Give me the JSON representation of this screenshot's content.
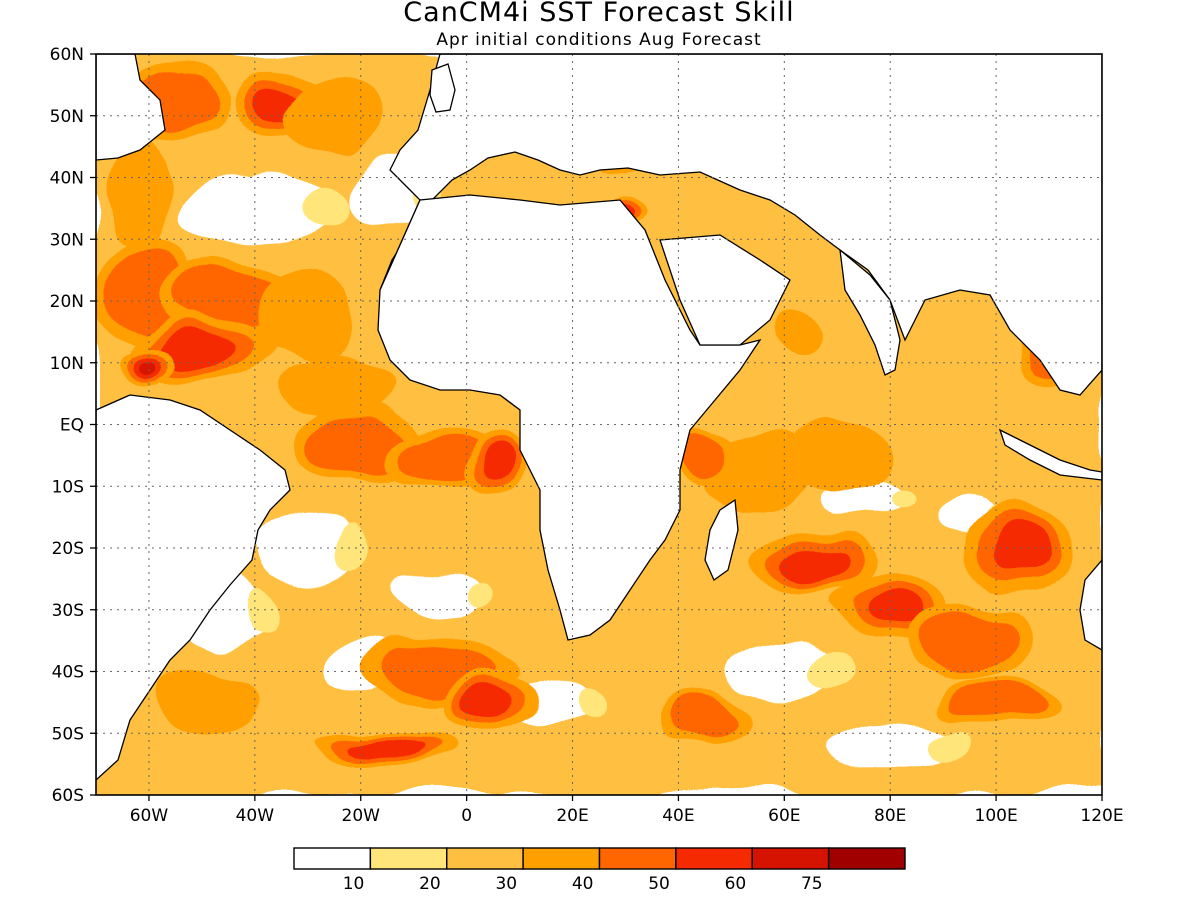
{
  "map": {
    "title": "CanCM4i SST Forecast Skill",
    "subtitle": "Apr initial conditions  Aug Forecast",
    "lat_labels": [
      "60N",
      "50N",
      "40N",
      "30N",
      "20N",
      "10N",
      "EQ",
      "10S",
      "20S",
      "30S",
      "40S",
      "50S",
      "60S"
    ],
    "lat_values": [
      60,
      50,
      40,
      30,
      20,
      10,
      0,
      -10,
      -20,
      -30,
      -40,
      -50,
      -60
    ],
    "lon_labels": [
      "60W",
      "40W",
      "20W",
      "0",
      "20E",
      "40E",
      "60E",
      "80E",
      "100E",
      "120E"
    ],
    "lon_values": [
      -60,
      -40,
      -20,
      0,
      20,
      40,
      60,
      80,
      100,
      120
    ],
    "lon_range": [
      -70,
      120
    ],
    "lat_range": [
      -60,
      60
    ],
    "grid": true,
    "palette": [
      "#ffffff",
      "#ffe57a",
      "#ffbf40",
      "#ff9f00",
      "#ff6600",
      "#f52a00",
      "#d61200",
      "#a00000"
    ],
    "colorbar": {
      "colors": [
        "#ffffff",
        "#ffe57a",
        "#ffbf40",
        "#ff9f00",
        "#ff6600",
        "#f52a00",
        "#d61200",
        "#a00000"
      ],
      "labels": [
        "10",
        "20",
        "30",
        "40",
        "50",
        "60",
        "75"
      ]
    },
    "skill_regions": [
      {
        "lon": -55,
        "lat": 52,
        "rx": 10,
        "ry": 6,
        "level": 4
      },
      {
        "lon": -35,
        "lat": 52,
        "rx": 9,
        "ry": 6,
        "level": 5
      },
      {
        "lon": -25,
        "lat": 50,
        "rx": 8,
        "ry": 6,
        "level": 3
      },
      {
        "lon": -62,
        "lat": 38,
        "rx": 6,
        "ry": 9,
        "level": 3
      },
      {
        "lon": -60,
        "lat": 22,
        "rx": 9,
        "ry": 9,
        "level": 4
      },
      {
        "lon": -45,
        "lat": 20,
        "rx": 14,
        "ry": 6,
        "level": 4
      },
      {
        "lon": -50,
        "lat": 12,
        "rx": 14,
        "ry": 5,
        "level": 5
      },
      {
        "lon": -60,
        "lat": 10,
        "rx": 6,
        "ry": 3,
        "level": 6
      },
      {
        "lon": -30,
        "lat": 18,
        "rx": 10,
        "ry": 8,
        "level": 3
      },
      {
        "lon": -25,
        "lat": 6,
        "rx": 10,
        "ry": 5,
        "level": 3
      },
      {
        "lon": -20,
        "lat": -3,
        "rx": 12,
        "ry": 6,
        "level": 4
      },
      {
        "lon": -5,
        "lat": -5,
        "rx": 10,
        "ry": 5,
        "level": 4
      },
      {
        "lon": 5,
        "lat": -6,
        "rx": 6,
        "ry": 5,
        "level": 5
      },
      {
        "lon": -10,
        "lat": -20,
        "rx": 12,
        "ry": 8,
        "level": 2
      },
      {
        "lon": -35,
        "lat": -35,
        "rx": 10,
        "ry": 8,
        "level": 2
      },
      {
        "lon": -50,
        "lat": -45,
        "rx": 10,
        "ry": 6,
        "level": 3
      },
      {
        "lon": -5,
        "lat": -40,
        "rx": 14,
        "ry": 5,
        "level": 4
      },
      {
        "lon": -15,
        "lat": -52,
        "rx": 14,
        "ry": 3,
        "level": 5
      },
      {
        "lon": 5,
        "lat": -45,
        "rx": 8,
        "ry": 5,
        "level": 5
      },
      {
        "lon": 30,
        "lat": -30,
        "rx": 14,
        "ry": 6,
        "level": 2
      },
      {
        "lon": 45,
        "lat": -48,
        "rx": 10,
        "ry": 4,
        "level": 4
      },
      {
        "lon": 55,
        "lat": -8,
        "rx": 10,
        "ry": 6,
        "level": 3
      },
      {
        "lon": 45,
        "lat": -5,
        "rx": 6,
        "ry": 5,
        "level": 4
      },
      {
        "lon": 65,
        "lat": -22,
        "rx": 12,
        "ry": 5,
        "level": 5
      },
      {
        "lon": 80,
        "lat": -30,
        "rx": 12,
        "ry": 6,
        "level": 5
      },
      {
        "lon": 95,
        "lat": -35,
        "rx": 12,
        "ry": 6,
        "level": 4
      },
      {
        "lon": 105,
        "lat": -20,
        "rx": 10,
        "ry": 8,
        "level": 5
      },
      {
        "lon": 100,
        "lat": -45,
        "rx": 12,
        "ry": 4,
        "level": 4
      },
      {
        "lon": 70,
        "lat": -5,
        "rx": 10,
        "ry": 6,
        "level": 3
      },
      {
        "lon": 90,
        "lat": 5,
        "rx": 8,
        "ry": 5,
        "level": 2
      },
      {
        "lon": 110,
        "lat": 12,
        "rx": 6,
        "ry": 6,
        "level": 4
      },
      {
        "lon": 28,
        "lat": 34,
        "rx": 5,
        "ry": 2,
        "level": 5
      },
      {
        "lon": 30,
        "lat": 42,
        "rx": 5,
        "ry": 2,
        "level": 3
      },
      {
        "lon": 62,
        "lat": 15,
        "rx": 5,
        "ry": 4,
        "level": 3
      }
    ],
    "cold_regions": [
      {
        "lon": -40,
        "lat": 35,
        "rx": 14,
        "ry": 6
      },
      {
        "lon": -15,
        "lat": 38,
        "rx": 8,
        "ry": 6
      },
      {
        "lon": -30,
        "lat": -20,
        "rx": 10,
        "ry": 6
      },
      {
        "lon": -5,
        "lat": -28,
        "rx": 8,
        "ry": 4
      },
      {
        "lon": -45,
        "lat": -30,
        "rx": 6,
        "ry": 6
      },
      {
        "lon": -20,
        "lat": -40,
        "rx": 8,
        "ry": 4
      },
      {
        "lon": 75,
        "lat": -12,
        "rx": 8,
        "ry": 3
      },
      {
        "lon": 60,
        "lat": -40,
        "rx": 10,
        "ry": 5
      },
      {
        "lon": 15,
        "lat": -45,
        "rx": 8,
        "ry": 4
      },
      {
        "lon": 95,
        "lat": -15,
        "rx": 5,
        "ry": 3
      },
      {
        "lon": 80,
        "lat": -52,
        "rx": 12,
        "ry": 4
      }
    ]
  }
}
